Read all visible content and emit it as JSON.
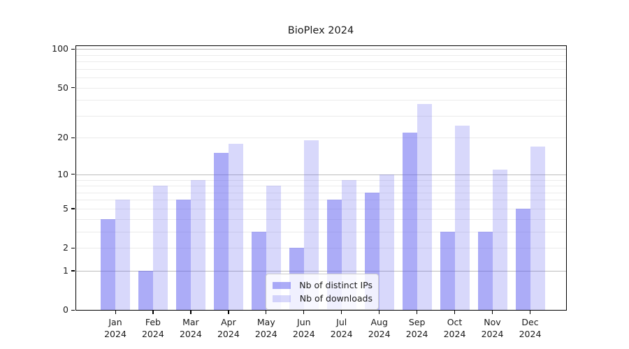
{
  "title": "BioPlex 2024",
  "chart_data": {
    "type": "bar",
    "title": "BioPlex 2024",
    "categories": [
      "Jan",
      "Feb",
      "Mar",
      "Apr",
      "May",
      "Jun",
      "Jul",
      "Aug",
      "Sep",
      "Oct",
      "Nov",
      "Dec"
    ],
    "category_year": "2024",
    "series": [
      {
        "name": "Nb of distinct IPs",
        "color": "rgba(90,90,240,0.50)",
        "values": [
          4,
          1,
          6,
          15,
          3,
          2,
          6,
          7,
          22,
          3,
          3,
          5
        ]
      },
      {
        "name": "Nb of downloads",
        "color": "rgba(90,90,240,0.24)",
        "values": [
          6,
          8,
          9,
          18,
          8,
          19,
          9,
          10,
          37,
          25,
          11,
          17
        ]
      }
    ],
    "y_axis": {
      "scale": "log1p",
      "range": [
        0,
        108
      ],
      "tick_values": [
        0,
        1,
        2,
        5,
        10,
        20,
        50,
        100
      ],
      "tick_labels": [
        "0",
        "1",
        "2",
        "5",
        "10",
        "20",
        "50",
        "100"
      ],
      "major_gridlines": [
        1,
        10,
        100
      ],
      "minor_gridlines": [
        2,
        3,
        4,
        5,
        6,
        7,
        8,
        9,
        20,
        30,
        40,
        50,
        60,
        70,
        80,
        90
      ]
    },
    "legend": {
      "position": "lower center",
      "entries": [
        "Nb of distinct IPs",
        "Nb of downloads"
      ]
    },
    "grid": true
  },
  "colors": {
    "background": "#ffffff",
    "major_grid": "#bdbdbd",
    "minor_grid": "#ebebeb",
    "spine": "#000000",
    "text": "#1a1a1a",
    "bar_base": "#5a5af0",
    "legend_border": "#cccccc"
  }
}
